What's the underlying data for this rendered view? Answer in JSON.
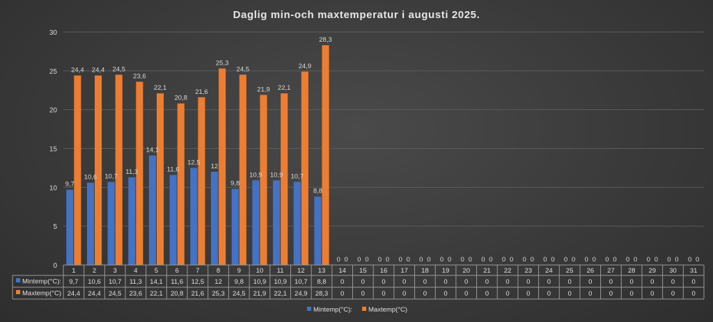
{
  "chart_data": {
    "type": "bar",
    "title": "Daglig min-och maxtemperatur i augusti 2025.",
    "xlabel": "",
    "ylabel": "",
    "ylim": [
      0,
      30
    ],
    "yticks": [
      0,
      5,
      10,
      15,
      20,
      25,
      30
    ],
    "grid": true,
    "legend_position": "bottom",
    "categories": [
      "1",
      "2",
      "3",
      "4",
      "5",
      "6",
      "7",
      "8",
      "9",
      "10",
      "11",
      "12",
      "13",
      "14",
      "15",
      "16",
      "17",
      "18",
      "19",
      "20",
      "21",
      "22",
      "23",
      "24",
      "25",
      "26",
      "27",
      "28",
      "29",
      "30",
      "31"
    ],
    "series": [
      {
        "name": "Mintemp(°C):",
        "color": "#4472c4",
        "values": [
          9.7,
          10.6,
          10.7,
          11.3,
          14.1,
          11.6,
          12.5,
          12,
          9.8,
          10.9,
          10.9,
          10.7,
          8.8,
          0,
          0,
          0,
          0,
          0,
          0,
          0,
          0,
          0,
          0,
          0,
          0,
          0,
          0,
          0,
          0,
          0,
          0
        ],
        "labels": [
          "9,7",
          "10,6",
          "10,7",
          "11,3",
          "14,1",
          "11,6",
          "12,5",
          "12",
          "9,8",
          "10,9",
          "10,9",
          "10,7",
          "8,8",
          "0",
          "0",
          "0",
          "0",
          "0",
          "0",
          "0",
          "0",
          "0",
          "0",
          "0",
          "0",
          "0",
          "0",
          "0",
          "0",
          "0",
          "0"
        ]
      },
      {
        "name": "Maxtemp(°C)",
        "color": "#ed7d31",
        "values": [
          24.4,
          24.4,
          24.5,
          23.6,
          22.1,
          20.8,
          21.6,
          25.3,
          24.5,
          21.9,
          22.1,
          24.9,
          28.3,
          0,
          0,
          0,
          0,
          0,
          0,
          0,
          0,
          0,
          0,
          0,
          0,
          0,
          0,
          0,
          0,
          0,
          0
        ],
        "labels": [
          "24,4",
          "24,4",
          "24,5",
          "23,6",
          "22,1",
          "20,8",
          "21,6",
          "25,3",
          "24,5",
          "21,9",
          "22,1",
          "24,9",
          "28,3",
          "0",
          "0",
          "0",
          "0",
          "0",
          "0",
          "0",
          "0",
          "0",
          "0",
          "0",
          "0",
          "0",
          "0",
          "0",
          "0",
          "0",
          "0"
        ]
      }
    ]
  }
}
